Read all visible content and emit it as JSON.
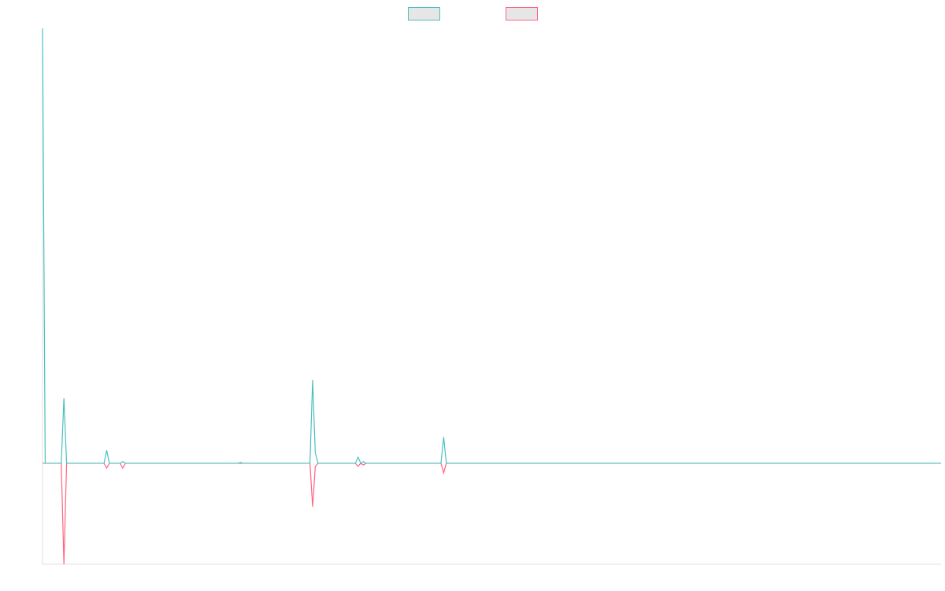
{
  "chart_data": {
    "type": "line",
    "x": [
      0,
      1,
      7,
      8,
      9,
      23,
      24,
      25,
      29,
      30,
      31,
      73,
      74,
      75,
      100,
      101,
      102,
      103,
      117,
      118,
      119,
      120,
      121,
      149,
      150,
      151,
      336
    ],
    "series": [
      {
        "color": "#4bc0c0",
        "values": [
          100,
          0,
          0,
          15,
          0,
          0,
          3,
          0,
          0,
          0.4,
          0,
          0,
          0.2,
          0,
          0,
          19.2,
          2.4,
          0,
          0,
          1.4,
          0,
          0.4,
          0,
          0,
          6,
          0,
          0
        ]
      },
      {
        "color": "#ff6384",
        "values": [
          0,
          0,
          0,
          -23.2,
          0,
          0,
          -1.1,
          0,
          0,
          -1.1,
          0,
          0,
          0,
          0,
          0,
          -10,
          -0.7,
          0,
          0,
          -0.7,
          0,
          -0.4,
          0,
          0,
          -2.2,
          0,
          0
        ]
      }
    ],
    "xlim": [
      0,
      336
    ],
    "ylim": [
      -23.2,
      100
    ],
    "legend": "top"
  }
}
